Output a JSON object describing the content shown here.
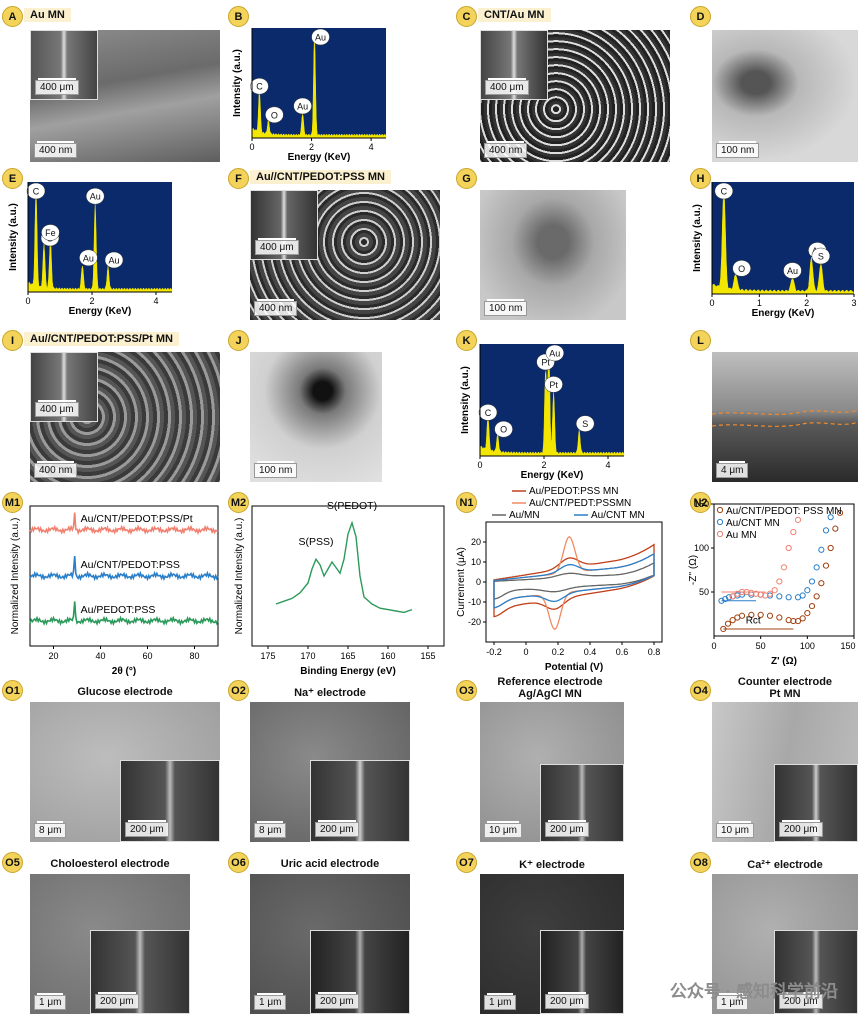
{
  "labels": {
    "A": "A",
    "B": "B",
    "C": "C",
    "D": "D",
    "E": "E",
    "F": "F",
    "G": "G",
    "H": "H",
    "I": "I",
    "J": "J",
    "K": "K",
    "L": "L",
    "M1": "M1",
    "M2": "M2",
    "N1": "N1",
    "N2": "N2",
    "O1": "O1",
    "O2": "O2",
    "O3": "O3",
    "O4": "O4",
    "O5": "O5",
    "O6": "O6",
    "O7": "O7",
    "O8": "O8"
  },
  "titles": {
    "A": "Au MN",
    "C": "CNT/Au MN",
    "F": "Au//CNT/PEDOT:PSS MN",
    "I": "Au//CNT/PEDOT:PSS/Pt MN",
    "O1": "Glucose electrode",
    "O2": "Na⁺ electrode",
    "O3a": "Reference electrode",
    "O3b": "Ag/AgCl MN",
    "O4a": "Counter electrode",
    "O4b": "Pt MN",
    "O5": "Choloesterol electrode",
    "O6": "Uric acid electrode",
    "O7": "K⁺ electrode",
    "O8": "Ca²⁺ electrode"
  },
  "scales": {
    "A_inset": "400 μm",
    "A": "400 nm",
    "C_inset": "400 μm",
    "C": "400 nm",
    "D": "100 nm",
    "F_inset": "400 μm",
    "F": "400 nm",
    "G": "100 nm",
    "I_inset": "400 μm",
    "I": "400 nm",
    "J": "100 nm",
    "L": "4 μm",
    "O1": "8 μm",
    "O1_inset": "200 μm",
    "O2": "8 μm",
    "O2_inset": "200 μm",
    "O3": "10 μm",
    "O3_inset": "200 μm",
    "O4": "10 μm",
    "O4_inset": "200 μm",
    "O5": "1 μm",
    "O5_inset": "200 μm",
    "O6": "1 μm",
    "O6_inset": "200 μm",
    "O7": "1 μm",
    "O7_inset": "200 μm",
    "O8": "1 μm",
    "O8_inset": "200 μm"
  },
  "colors": {
    "eds_bg": "#0a2a6b",
    "eds_peak": "#f3e600",
    "badge": "#f3d35a",
    "xrd_1": "#f08070",
    "xrd_2": "#2a7fc9",
    "xrd_3": "#2c9a5b",
    "xps": "#2c9a5b",
    "cv_pedot": "#c0401a",
    "cv_pedt": "#f08a60",
    "cv_au": "#666666",
    "cv_cnt": "#2a7fc9"
  },
  "watermark": "公众号 · 感知科学前沿",
  "chart_data": [
    {
      "id": "B",
      "type": "bar",
      "xlabel": "Energy (KeV)",
      "ylabel": "Intensity (a.u.)",
      "xlim": [
        0,
        4.5
      ],
      "xticks": [
        0,
        2,
        4
      ],
      "peaks": [
        {
          "label": "C",
          "x": 0.25,
          "h": 0.38
        },
        {
          "label": "O",
          "x": 0.55,
          "h": 0.12
        },
        {
          "label": "Au",
          "x": 1.7,
          "h": 0.2
        },
        {
          "label": "Au",
          "x": 2.1,
          "h": 0.92
        }
      ]
    },
    {
      "id": "E",
      "type": "bar",
      "xlabel": "Energy (KeV)",
      "ylabel": "Intensity (a.u.)",
      "xlim": [
        0,
        4.5
      ],
      "xticks": [
        0,
        2,
        4
      ],
      "peaks": [
        {
          "label": "C",
          "x": 0.25,
          "h": 0.88
        },
        {
          "label": "O",
          "x": 0.5,
          "h": 0.4
        },
        {
          "label": "Fe",
          "x": 0.7,
          "h": 0.45
        },
        {
          "label": "Au",
          "x": 1.7,
          "h": 0.22
        },
        {
          "label": "Au",
          "x": 2.1,
          "h": 0.78
        },
        {
          "label": "Au",
          "x": 2.5,
          "h": 0.2
        }
      ]
    },
    {
      "id": "H",
      "type": "bar",
      "xlabel": "Energy (KeV)",
      "ylabel": "Intensity (a.u.)",
      "xlim": [
        0,
        3
      ],
      "xticks": [
        0,
        1,
        2,
        3
      ],
      "peaks": [
        {
          "label": "C",
          "x": 0.25,
          "h": 0.9
        },
        {
          "label": "O",
          "x": 0.5,
          "h": 0.14
        },
        {
          "label": "Au",
          "x": 1.7,
          "h": 0.12
        },
        {
          "label": "Au",
          "x": 2.1,
          "h": 0.3
        },
        {
          "label": "S",
          "x": 2.3,
          "h": 0.25
        }
      ]
    },
    {
      "id": "K",
      "type": "bar",
      "xlabel": "Energy (KeV)",
      "ylabel": "Intensity (a.u.)",
      "xlim": [
        0,
        4.5
      ],
      "xticks": [
        0,
        2,
        4
      ],
      "peaks": [
        {
          "label": "C",
          "x": 0.25,
          "h": 0.3
        },
        {
          "label": "O",
          "x": 0.55,
          "h": 0.15
        },
        {
          "label": "Pt",
          "x": 2.05,
          "h": 0.75
        },
        {
          "label": "Au",
          "x": 2.15,
          "h": 0.95
        },
        {
          "label": "Pt",
          "x": 2.3,
          "h": 0.55
        },
        {
          "label": "S",
          "x": 3.1,
          "h": 0.2
        }
      ]
    },
    {
      "id": "M1",
      "type": "line",
      "xlabel": "2θ (°)",
      "ylabel": "Normalized Intensity (a.u.)",
      "xlim": [
        10,
        90
      ],
      "xticks": [
        20,
        40,
        60,
        80
      ],
      "series": [
        {
          "name": "Au/CNT/PEDOT:PSS/Pt",
          "offset": 0.83,
          "peaks": [
            {
              "x": 29,
              "h": 0.12
            }
          ]
        },
        {
          "name": "Au/CNT/PEDOT:PSS",
          "offset": 0.5,
          "peaks": [
            {
              "x": 29,
              "h": 0.15
            }
          ]
        },
        {
          "name": "Au/PEDOT:PSS",
          "offset": 0.18,
          "peaks": [
            {
              "x": 29,
              "h": 0.15
            }
          ]
        }
      ]
    },
    {
      "id": "M2",
      "type": "line",
      "xlabel": "Binding Energy (eV)",
      "ylabel": "Normalized Intensity (a.u.)",
      "xlim": [
        177,
        153
      ],
      "xticks": [
        175,
        170,
        165,
        160,
        155
      ],
      "annotations": [
        {
          "label": "S(PSS)",
          "x": 169
        },
        {
          "label": "S(PEDOT)",
          "x": 164.5
        }
      ],
      "x": [
        174,
        173,
        172,
        171,
        170,
        169.5,
        169,
        168.5,
        168,
        167.5,
        167,
        166,
        165.5,
        165,
        164.5,
        164,
        163.5,
        163,
        162,
        161,
        160,
        159,
        158,
        157
      ],
      "y": [
        0.3,
        0.32,
        0.34,
        0.38,
        0.45,
        0.55,
        0.62,
        0.58,
        0.5,
        0.55,
        0.6,
        0.52,
        0.62,
        0.8,
        0.88,
        0.78,
        0.5,
        0.35,
        0.3,
        0.27,
        0.26,
        0.25,
        0.24,
        0.26
      ]
    },
    {
      "id": "N1",
      "type": "line",
      "xlabel": "Potential (V)",
      "ylabel": "Currenrent (μA)",
      "xlim": [
        -0.25,
        0.85
      ],
      "ylim": [
        -30,
        30
      ],
      "xticks": [
        -0.2,
        0,
        0.2,
        0.4,
        0.6,
        0.8
      ],
      "yticks": [
        -20,
        -10,
        0,
        10,
        20
      ],
      "series": [
        {
          "name": "Au/PEDOT:PSS MN"
        },
        {
          "name": "Au/CNT/PEDT:PSSMN"
        },
        {
          "name": "Au/MN"
        },
        {
          "name": "Au/CNT MN"
        }
      ]
    },
    {
      "id": "N2",
      "type": "scatter",
      "xlabel": "Z' (Ω)",
      "ylabel": "-Z'' (Ω)",
      "xlim": [
        0,
        150
      ],
      "ylim": [
        0,
        150
      ],
      "xticks": [
        0,
        50,
        100,
        150
      ],
      "yticks": [
        50,
        100,
        150
      ],
      "annotation": "Rct",
      "series": [
        {
          "name": "Au/CNT/PEDOT: PSS MN",
          "x": [
            10,
            15,
            20,
            25,
            30,
            40,
            50,
            60,
            70,
            80,
            85,
            90,
            95,
            100,
            105,
            110,
            115,
            120,
            125,
            130,
            135
          ],
          "y": [
            8,
            14,
            18,
            21,
            23,
            24,
            24,
            23,
            21,
            18,
            17,
            17,
            20,
            26,
            34,
            45,
            60,
            80,
            100,
            122,
            140
          ]
        },
        {
          "name": "Au/CNT MN",
          "x": [
            8,
            12,
            16,
            20,
            25,
            30,
            40,
            50,
            60,
            70,
            80,
            90,
            95,
            100,
            105,
            110,
            115,
            120,
            125
          ],
          "y": [
            40,
            42,
            44,
            45,
            46,
            47,
            47,
            47,
            46,
            45,
            44,
            44,
            46,
            52,
            62,
            78,
            98,
            120,
            135
          ]
        },
        {
          "name": "Au MN",
          "x": [
            20,
            25,
            30,
            35,
            40,
            45,
            50,
            55,
            60,
            65,
            70,
            75,
            80,
            85,
            90
          ],
          "y": [
            45,
            48,
            50,
            50,
            49,
            48,
            47,
            46,
            48,
            52,
            62,
            78,
            100,
            118,
            132
          ]
        }
      ]
    }
  ]
}
